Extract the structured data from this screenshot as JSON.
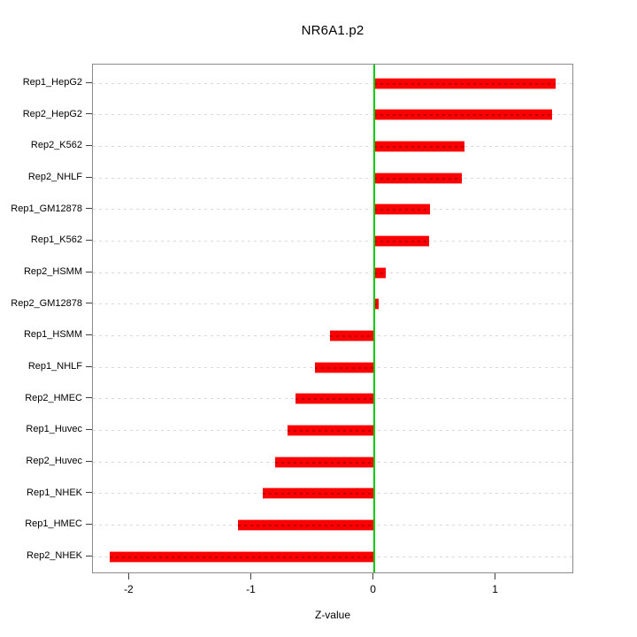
{
  "title": "NR6A1.p2",
  "x_axis": {
    "label": "Z-value",
    "tick_labels": [
      "-2",
      "-1",
      "0",
      "1"
    ],
    "tick_values": [
      -2,
      -1,
      0,
      1
    ]
  },
  "chart_data": {
    "type": "bar",
    "orientation": "horizontal",
    "title": "NR6A1.p2",
    "xlabel": "Z-value",
    "ylabel": "",
    "categories": [
      "Rep1_HepG2",
      "Rep2_HepG2",
      "Rep2_K562",
      "Rep2_NHLF",
      "Rep1_GM12878",
      "Rep1_K562",
      "Rep2_HSMM",
      "Rep2_GM12878",
      "Rep1_HSMM",
      "Rep1_NHLF",
      "Rep2_HMEC",
      "Rep1_Huvec",
      "Rep2_Huvec",
      "Rep1_NHEK",
      "Rep1_HMEC",
      "Rep2_NHEK"
    ],
    "values": [
      1.49,
      1.46,
      0.74,
      0.72,
      0.46,
      0.45,
      0.1,
      0.04,
      -0.36,
      -0.48,
      -0.64,
      -0.71,
      -0.81,
      -0.91,
      -1.11,
      -2.16
    ],
    "xlim": [
      -2.3,
      1.64
    ],
    "xticks": [
      -2,
      -1,
      0,
      1
    ],
    "grid": "dashed horizontal line per category",
    "legend": "none",
    "colors": {
      "bar": "#fb0000",
      "bar_edge": "#ff9b9b",
      "zero_line": "#00cc00",
      "gridline": "#d9d9d9",
      "box_border": "#8a8a8a",
      "text": "#000000"
    }
  }
}
